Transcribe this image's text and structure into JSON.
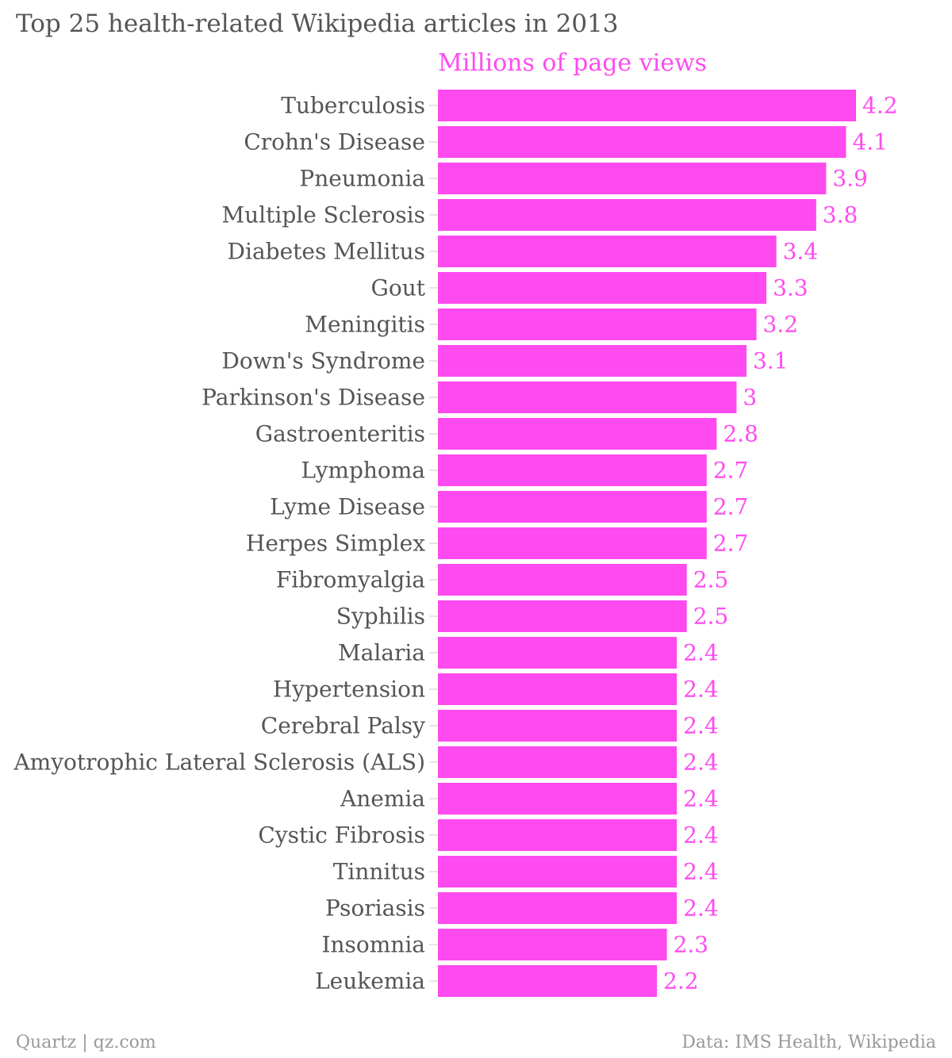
{
  "chart_data": {
    "type": "bar",
    "orientation": "horizontal",
    "title": "Top 25 health-related Wikipedia articles in 2013",
    "series": [
      {
        "name": "Millions of page views",
        "color": "#ff4af0",
        "values": [
          4.2,
          4.1,
          3.9,
          3.8,
          3.4,
          3.3,
          3.2,
          3.1,
          3,
          2.8,
          2.7,
          2.7,
          2.7,
          2.5,
          2.5,
          2.4,
          2.4,
          2.4,
          2.4,
          2.4,
          2.4,
          2.4,
          2.4,
          2.3,
          2.2
        ]
      }
    ],
    "categories": [
      "Tuberculosis",
      "Crohn's Disease",
      "Pneumonia",
      "Multiple Sclerosis",
      "Diabetes Mellitus",
      "Gout",
      "Meningitis",
      "Down's Syndrome",
      "Parkinson's Disease",
      "Gastroenteritis",
      "Lymphoma",
      "Lyme Disease",
      "Herpes Simplex",
      "Fibromyalgia",
      "Syphilis",
      "Malaria",
      "Hypertension",
      "Cerebral Palsy",
      "Amyotrophic Lateral Sclerosis (ALS)",
      "Anemia",
      "Cystic Fibrosis",
      "Tinnitus",
      "Psoriasis",
      "Insomnia",
      "Leukemia"
    ],
    "xlim": [
      0,
      4.2
    ],
    "grid": false,
    "legend": "top",
    "label_color": "#555555"
  },
  "footer": {
    "source_left": "Quartz | qz.com",
    "source_right": "Data: IMS Health, Wikipedia"
  }
}
